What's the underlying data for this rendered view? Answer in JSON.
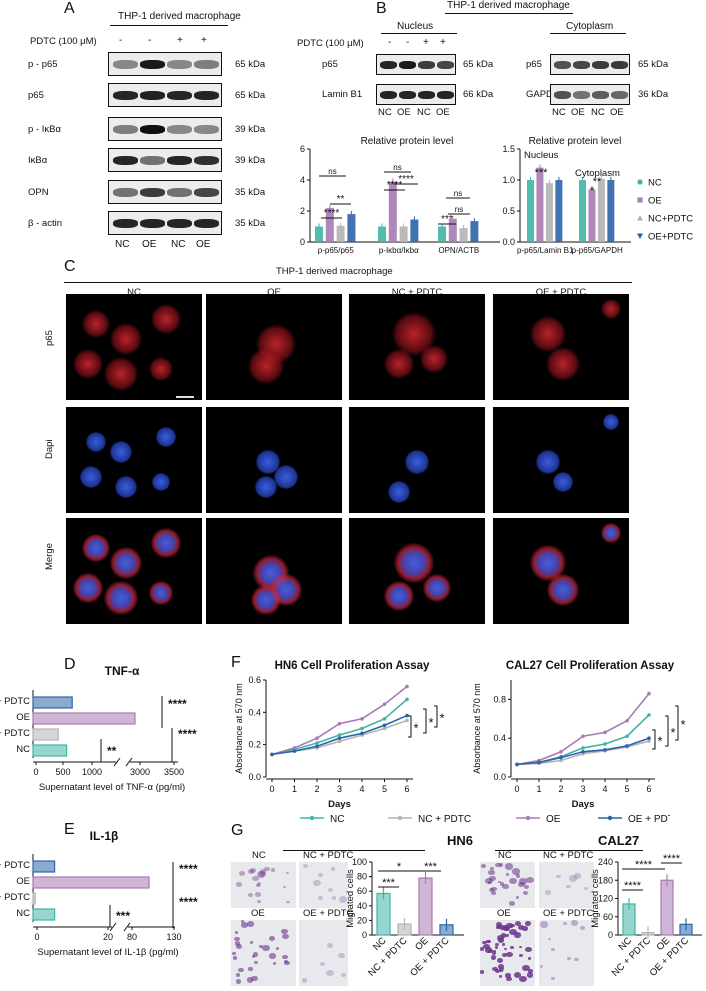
{
  "panels": {
    "A": "A",
    "B": "B",
    "C": "C",
    "D": "D",
    "E": "E",
    "F": "F",
    "G": "G"
  },
  "header_macrophage": "THP-1 derived macrophage",
  "pdtc_label": "PDTC (100 μM)",
  "pdtc_signs_a": [
    "-",
    "-",
    "+",
    "+"
  ],
  "pdtc_signs_b": [
    "-",
    "-",
    "+",
    "+"
  ],
  "lanes": [
    "NC",
    "OE",
    "NC",
    "OE"
  ],
  "blot_a": [
    {
      "label": "p - p65",
      "kda": "65 kDa"
    },
    {
      "label": "p65",
      "kda": "65 kDa"
    },
    {
      "label": "p - IκBα",
      "kda": "39 kDa"
    },
    {
      "label": "IκBα",
      "kda": "39 kDa"
    },
    {
      "label": "OPN",
      "kda": "35 kDa"
    },
    {
      "label": "β - actin",
      "kda": "35 kDa"
    }
  ],
  "nucleus": "Nucleus",
  "cytoplasm": "Cytoplasm",
  "blot_b_nucleus": [
    {
      "label": "p65",
      "kda": "65 kDa"
    },
    {
      "label": "Lamin B1",
      "kda": "66 kDa"
    }
  ],
  "blot_b_cyto": [
    {
      "label": "p65",
      "kda": "65 kDa"
    },
    {
      "label": "GAPDH",
      "kda": "36 kDa"
    }
  ],
  "colors": {
    "NC": "#3fb5a6",
    "OE": "#a77ab4",
    "NCPDTC": "#b3b3b3",
    "OEPDTC": "#2c64a8"
  },
  "legend_b": [
    "NC",
    "OE",
    "NC+PDTC",
    "OE+PDTC"
  ],
  "chart_data": [
    {
      "type": "bar",
      "panel": "B-left",
      "title": "Relative protein level",
      "categories": [
        "p-p65/p65",
        "p-Iκbα/Iκbα",
        "OPN/ACTB"
      ],
      "series": [
        {
          "name": "NC",
          "values": [
            1.0,
            1.0,
            1.0
          ]
        },
        {
          "name": "OE",
          "values": [
            2.2,
            3.9,
            1.5
          ]
        },
        {
          "name": "NC+PDTC",
          "values": [
            1.05,
            1.0,
            0.9
          ]
        },
        {
          "name": "OE+PDTC",
          "values": [
            1.8,
            1.45,
            1.35
          ]
        }
      ],
      "ylim": [
        0,
        6
      ],
      "yticks": [
        "0",
        "2",
        "4",
        "6"
      ],
      "annotations": [
        "****",
        "**",
        "ns",
        "****",
        "****",
        "ns",
        "***",
        "ns",
        "ns"
      ]
    },
    {
      "type": "bar",
      "panel": "B-right",
      "title": "Relative protein level",
      "categories": [
        "p-p65/Lamin B1",
        "p-p65/GAPDH"
      ],
      "group_labels": [
        "Nucleus",
        "Cytoplasm"
      ],
      "series": [
        {
          "name": "NC",
          "values": [
            1.0,
            1.0
          ]
        },
        {
          "name": "OE",
          "values": [
            1.2,
            0.85
          ]
        },
        {
          "name": "NC+PDTC",
          "values": [
            0.95,
            1.02
          ]
        },
        {
          "name": "OE+PDTC",
          "values": [
            1.0,
            1.0
          ]
        }
      ],
      "ylim": [
        0,
        1.5
      ],
      "yticks": [
        "0.0",
        "0.5",
        "1.0",
        "1.5"
      ],
      "annotations": [
        "***",
        "**",
        "*"
      ]
    },
    {
      "type": "bar",
      "panel": "D",
      "orientation": "horizontal",
      "title": "TNF-α",
      "categories": [
        "OE + PDTC",
        "OE",
        "NC + PDTC",
        "NC"
      ],
      "values": [
        700,
        3200,
        450,
        600
      ],
      "xticks": [
        "0",
        "500",
        "1000",
        "3000",
        "3500"
      ],
      "xlabel": "Supernatant level of TNF-α (pg/ml)",
      "annotations": [
        "****",
        "****",
        "**"
      ]
    },
    {
      "type": "bar",
      "panel": "E",
      "orientation": "horizontal",
      "title": "IL-1β",
      "categories": [
        "OE + PDTC",
        "OE",
        "NC + PDTC",
        "NC"
      ],
      "values": [
        6,
        120,
        0.6,
        6
      ],
      "xticks": [
        "0",
        "20",
        "80",
        "130"
      ],
      "xlabel": "Supernatant level of IL-1β (pg/ml)",
      "annotations": [
        "****",
        "****",
        "***"
      ]
    },
    {
      "type": "line",
      "panel": "F-left",
      "title": "HN6 Cell Proliferation Assay",
      "x": [
        0,
        1,
        2,
        3,
        4,
        5,
        6
      ],
      "series": [
        {
          "name": "NC",
          "values": [
            0.14,
            0.17,
            0.21,
            0.26,
            0.3,
            0.36,
            0.48
          ]
        },
        {
          "name": "NC + PDTC",
          "values": [
            0.14,
            0.16,
            0.18,
            0.22,
            0.26,
            0.3,
            0.35
          ]
        },
        {
          "name": "OE",
          "values": [
            0.14,
            0.18,
            0.24,
            0.33,
            0.36,
            0.45,
            0.56
          ]
        },
        {
          "name": "OE + PDTC",
          "values": [
            0.14,
            0.16,
            0.19,
            0.24,
            0.27,
            0.32,
            0.38
          ]
        }
      ],
      "xlabel": "Days",
      "ylabel": "Absorbance at 570 nm",
      "ylim": [
        0,
        0.6
      ],
      "yticks": [
        "0.0",
        "0.2",
        "0.4",
        "0.6"
      ],
      "annotations": [
        "*",
        "*",
        "*"
      ]
    },
    {
      "type": "line",
      "panel": "F-right",
      "title": "CAL27 Cell Proliferation Assay",
      "x": [
        0,
        1,
        2,
        3,
        4,
        5,
        6
      ],
      "series": [
        {
          "name": "NC",
          "values": [
            0.13,
            0.15,
            0.21,
            0.3,
            0.34,
            0.42,
            0.64
          ]
        },
        {
          "name": "NC + PDTC",
          "values": [
            0.13,
            0.14,
            0.17,
            0.24,
            0.27,
            0.31,
            0.37
          ]
        },
        {
          "name": "OE",
          "values": [
            0.13,
            0.17,
            0.26,
            0.42,
            0.46,
            0.58,
            0.86
          ]
        },
        {
          "name": "OE + PDTC",
          "values": [
            0.13,
            0.15,
            0.2,
            0.26,
            0.28,
            0.32,
            0.4
          ]
        }
      ],
      "xlabel": "Days",
      "ylabel": "Absorbance at 570 nm",
      "ylim": [
        0,
        1.0
      ],
      "yticks": [
        "0.0",
        "0.4",
        "0.8"
      ],
      "annotations": [
        "*",
        "*",
        "*"
      ]
    },
    {
      "type": "bar",
      "panel": "G-HN6",
      "title": "HN6",
      "categories": [
        "NC",
        "NC + PDTC",
        "OE",
        "OE + PDTC"
      ],
      "values": [
        57,
        15,
        78,
        14
      ],
      "ylabel": "Migrated cells",
      "ylim": [
        0,
        100
      ],
      "yticks": [
        "0",
        "20",
        "40",
        "60",
        "80",
        "100"
      ],
      "annotations": [
        "***",
        "*",
        "***"
      ]
    },
    {
      "type": "bar",
      "panel": "G-CAL27",
      "title": "CAL27",
      "categories": [
        "NC",
        "NC + PDTC",
        "OE",
        "OE + PDTC"
      ],
      "values": [
        102,
        8,
        180,
        35
      ],
      "ylabel": "Migrated cells",
      "ylim": [
        0,
        240
      ],
      "yticks": [
        "0",
        "60",
        "120",
        "180",
        "240"
      ],
      "annotations": [
        "****",
        "****",
        "****"
      ]
    }
  ],
  "legend_f": [
    "NC",
    "NC + PDTC",
    "OE",
    "OE + PDTC"
  ],
  "if_columns": [
    "NC",
    "OE",
    "NC + PDTC",
    "OE + PDTC"
  ],
  "if_rows": [
    "p65",
    "Dapi",
    "Merge"
  ],
  "g_labels": {
    "nc": "NC",
    "ncp": "NC + PDTC",
    "oe": "OE",
    "oep": "OE + PDTC"
  }
}
